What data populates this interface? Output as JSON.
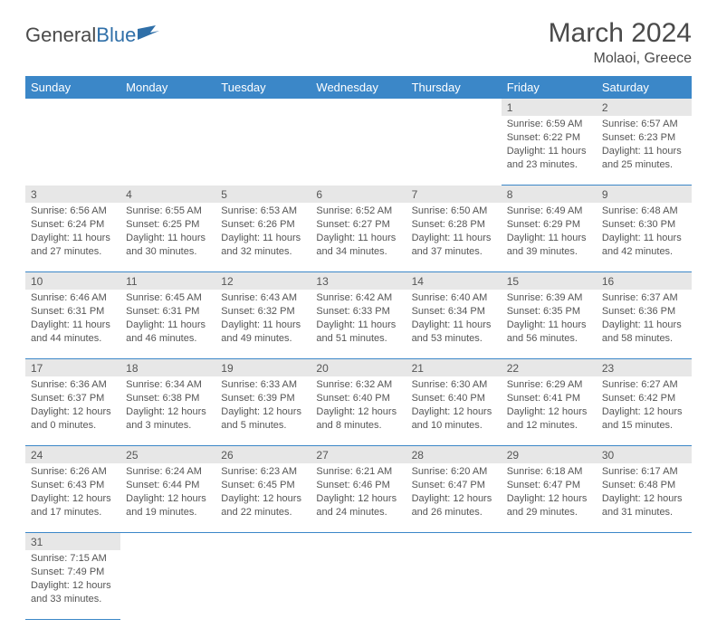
{
  "brand": {
    "part1": "General",
    "part2": "Blue"
  },
  "title": "March 2024",
  "location": "Molaoi, Greece",
  "colors": {
    "headerBar": "#3b87c8",
    "dayNumBg": "#e7e7e7",
    "text": "#555555",
    "rule": "#3b87c8"
  },
  "dayHeaders": [
    "Sunday",
    "Monday",
    "Tuesday",
    "Wednesday",
    "Thursday",
    "Friday",
    "Saturday"
  ],
  "weeks": [
    [
      null,
      null,
      null,
      null,
      null,
      {
        "n": "1",
        "sr": "6:59 AM",
        "ss": "6:22 PM",
        "dl": "11 hours and 23 minutes."
      },
      {
        "n": "2",
        "sr": "6:57 AM",
        "ss": "6:23 PM",
        "dl": "11 hours and 25 minutes."
      }
    ],
    [
      {
        "n": "3",
        "sr": "6:56 AM",
        "ss": "6:24 PM",
        "dl": "11 hours and 27 minutes."
      },
      {
        "n": "4",
        "sr": "6:55 AM",
        "ss": "6:25 PM",
        "dl": "11 hours and 30 minutes."
      },
      {
        "n": "5",
        "sr": "6:53 AM",
        "ss": "6:26 PM",
        "dl": "11 hours and 32 minutes."
      },
      {
        "n": "6",
        "sr": "6:52 AM",
        "ss": "6:27 PM",
        "dl": "11 hours and 34 minutes."
      },
      {
        "n": "7",
        "sr": "6:50 AM",
        "ss": "6:28 PM",
        "dl": "11 hours and 37 minutes."
      },
      {
        "n": "8",
        "sr": "6:49 AM",
        "ss": "6:29 PM",
        "dl": "11 hours and 39 minutes."
      },
      {
        "n": "9",
        "sr": "6:48 AM",
        "ss": "6:30 PM",
        "dl": "11 hours and 42 minutes."
      }
    ],
    [
      {
        "n": "10",
        "sr": "6:46 AM",
        "ss": "6:31 PM",
        "dl": "11 hours and 44 minutes."
      },
      {
        "n": "11",
        "sr": "6:45 AM",
        "ss": "6:31 PM",
        "dl": "11 hours and 46 minutes."
      },
      {
        "n": "12",
        "sr": "6:43 AM",
        "ss": "6:32 PM",
        "dl": "11 hours and 49 minutes."
      },
      {
        "n": "13",
        "sr": "6:42 AM",
        "ss": "6:33 PM",
        "dl": "11 hours and 51 minutes."
      },
      {
        "n": "14",
        "sr": "6:40 AM",
        "ss": "6:34 PM",
        "dl": "11 hours and 53 minutes."
      },
      {
        "n": "15",
        "sr": "6:39 AM",
        "ss": "6:35 PM",
        "dl": "11 hours and 56 minutes."
      },
      {
        "n": "16",
        "sr": "6:37 AM",
        "ss": "6:36 PM",
        "dl": "11 hours and 58 minutes."
      }
    ],
    [
      {
        "n": "17",
        "sr": "6:36 AM",
        "ss": "6:37 PM",
        "dl": "12 hours and 0 minutes."
      },
      {
        "n": "18",
        "sr": "6:34 AM",
        "ss": "6:38 PM",
        "dl": "12 hours and 3 minutes."
      },
      {
        "n": "19",
        "sr": "6:33 AM",
        "ss": "6:39 PM",
        "dl": "12 hours and 5 minutes."
      },
      {
        "n": "20",
        "sr": "6:32 AM",
        "ss": "6:40 PM",
        "dl": "12 hours and 8 minutes."
      },
      {
        "n": "21",
        "sr": "6:30 AM",
        "ss": "6:40 PM",
        "dl": "12 hours and 10 minutes."
      },
      {
        "n": "22",
        "sr": "6:29 AM",
        "ss": "6:41 PM",
        "dl": "12 hours and 12 minutes."
      },
      {
        "n": "23",
        "sr": "6:27 AM",
        "ss": "6:42 PM",
        "dl": "12 hours and 15 minutes."
      }
    ],
    [
      {
        "n": "24",
        "sr": "6:26 AM",
        "ss": "6:43 PM",
        "dl": "12 hours and 17 minutes."
      },
      {
        "n": "25",
        "sr": "6:24 AM",
        "ss": "6:44 PM",
        "dl": "12 hours and 19 minutes."
      },
      {
        "n": "26",
        "sr": "6:23 AM",
        "ss": "6:45 PM",
        "dl": "12 hours and 22 minutes."
      },
      {
        "n": "27",
        "sr": "6:21 AM",
        "ss": "6:46 PM",
        "dl": "12 hours and 24 minutes."
      },
      {
        "n": "28",
        "sr": "6:20 AM",
        "ss": "6:47 PM",
        "dl": "12 hours and 26 minutes."
      },
      {
        "n": "29",
        "sr": "6:18 AM",
        "ss": "6:47 PM",
        "dl": "12 hours and 29 minutes."
      },
      {
        "n": "30",
        "sr": "6:17 AM",
        "ss": "6:48 PM",
        "dl": "12 hours and 31 minutes."
      }
    ],
    [
      {
        "n": "31",
        "sr": "7:15 AM",
        "ss": "7:49 PM",
        "dl": "12 hours and 33 minutes."
      },
      null,
      null,
      null,
      null,
      null,
      null
    ]
  ],
  "labels": {
    "sunrise": "Sunrise:",
    "sunset": "Sunset:",
    "daylight": "Daylight:"
  }
}
